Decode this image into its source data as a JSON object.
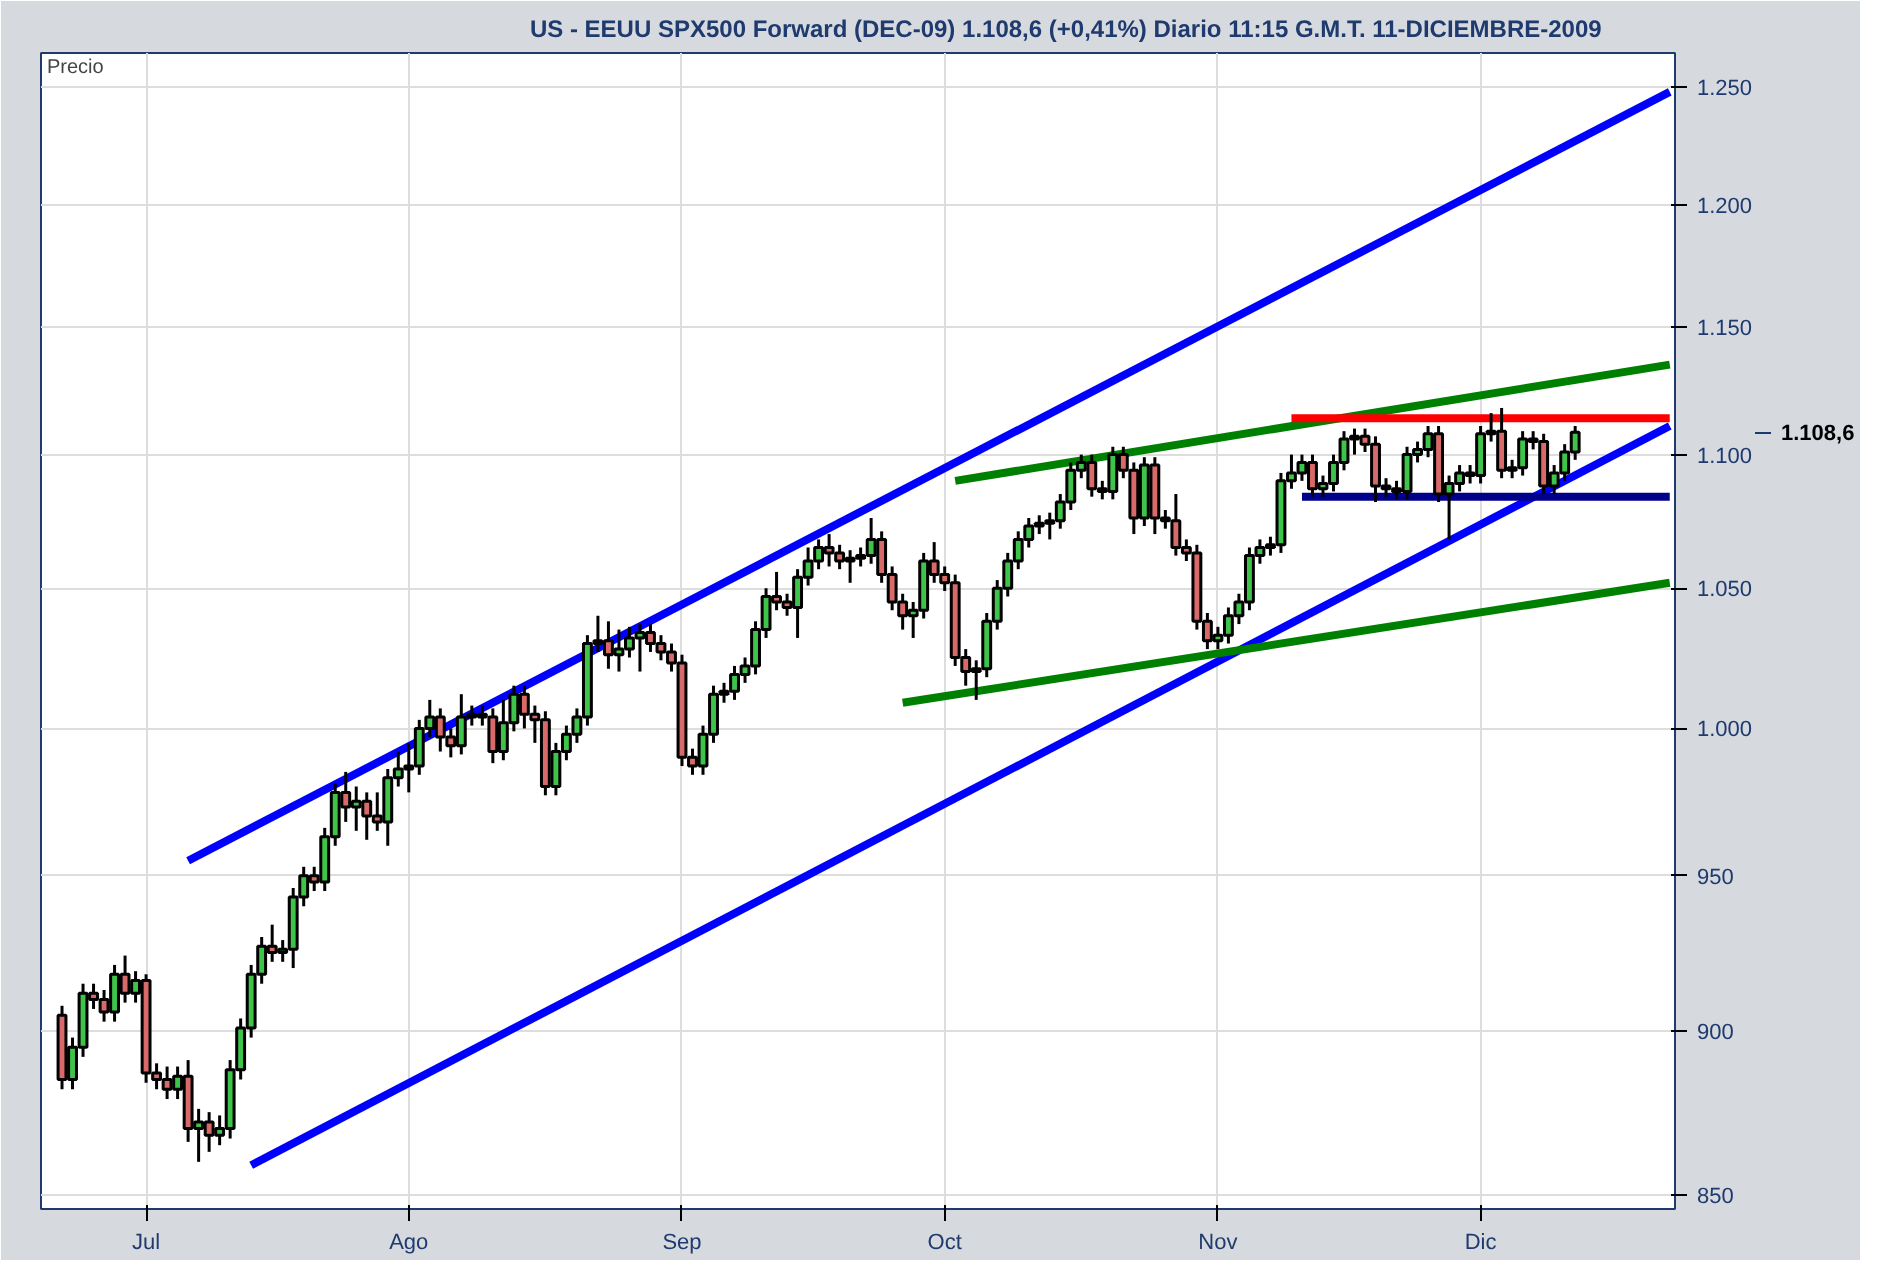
{
  "chart_data": {
    "type": "candlestick",
    "title": "US - EEUU SPX500 Forward (DEC-09)    1.108,6 (+0,41%)    Diario  11:15  G.M.T.    11-DICIEMBRE-2009",
    "ylabel": "Precio",
    "categories": [
      null,
      null,
      null,
      null,
      null,
      null,
      null,
      null,
      "Jul",
      null,
      null,
      null,
      null,
      null,
      null,
      null,
      null,
      null,
      null,
      null,
      null,
      null,
      null,
      null,
      null,
      null,
      null,
      null,
      null,
      null,
      null,
      null,
      null,
      "Ago",
      null,
      null,
      null,
      null,
      null,
      null,
      null,
      null,
      null,
      null,
      null,
      null,
      null,
      null,
      null,
      null,
      null,
      null,
      null,
      null,
      null,
      null,
      null,
      null,
      null,
      "Sep",
      null,
      null,
      null,
      null,
      null,
      null,
      null,
      null,
      null,
      null,
      null,
      null,
      null,
      null,
      null,
      null,
      null,
      null,
      null,
      null,
      null,
      null,
      null,
      null,
      "Oct",
      null,
      null,
      null,
      null,
      null,
      null,
      null,
      null,
      null,
      null,
      null,
      null,
      null,
      null,
      null,
      null,
      null,
      null,
      null,
      null,
      null,
      null,
      null,
      null,
      null,
      "Nov",
      null,
      null,
      null,
      null,
      null,
      null,
      null,
      null,
      null,
      null,
      null,
      null,
      null,
      null,
      null,
      null,
      null,
      null,
      null,
      null,
      null,
      null,
      null,
      null,
      "Dic",
      null,
      null,
      null,
      null,
      null,
      null,
      null,
      null,
      null,
      null,
      null,
      null,
      null,
      null,
      null,
      null,
      null,
      null
    ],
    "ohlc": [
      [
        905,
        908,
        882,
        885
      ],
      [
        885,
        898,
        882,
        895
      ],
      [
        895,
        915,
        892,
        912
      ],
      [
        912,
        915,
        907,
        910
      ],
      [
        910,
        913,
        903,
        906
      ],
      [
        906,
        921,
        903,
        918
      ],
      [
        918,
        924,
        909,
        912
      ],
      [
        912,
        919,
        909,
        916
      ],
      [
        916,
        918,
        884,
        887
      ],
      [
        887,
        890,
        882,
        885
      ],
      [
        885,
        889,
        879,
        882
      ],
      [
        882,
        889,
        879,
        886
      ],
      [
        886,
        891,
        866,
        870
      ],
      [
        870,
        876,
        860,
        872
      ],
      [
        872,
        875,
        863,
        868
      ],
      [
        868,
        874,
        865,
        870
      ],
      [
        870,
        891,
        867,
        888
      ],
      [
        888,
        904,
        885,
        901
      ],
      [
        901,
        921,
        898,
        918
      ],
      [
        918,
        930,
        915,
        927
      ],
      [
        927,
        934,
        922,
        925
      ],
      [
        925,
        929,
        922,
        926
      ],
      [
        926,
        946,
        920,
        943
      ],
      [
        943,
        953,
        940,
        950
      ],
      [
        950,
        953,
        945,
        948
      ],
      [
        948,
        966,
        945,
        963
      ],
      [
        963,
        981,
        960,
        978
      ],
      [
        978,
        985,
        968,
        973
      ],
      [
        973,
        980,
        965,
        975
      ],
      [
        975,
        978,
        962,
        970
      ],
      [
        970,
        978,
        965,
        968
      ],
      [
        968,
        986,
        960,
        983
      ],
      [
        983,
        992,
        980,
        986
      ],
      [
        986,
        995,
        978,
        987
      ],
      [
        987,
        1003,
        984,
        1000
      ],
      [
        1000,
        1010,
        997,
        1004
      ],
      [
        1004,
        1007,
        992,
        997
      ],
      [
        997,
        1000,
        990,
        994
      ],
      [
        994,
        1012,
        991,
        1004
      ],
      [
        1004,
        1008,
        1001,
        1005
      ],
      [
        1005,
        1008,
        1001,
        1004
      ],
      [
        1004,
        1007,
        988,
        992
      ],
      [
        992,
        1010,
        989,
        1002
      ],
      [
        1002,
        1015,
        999,
        1012
      ],
      [
        1012,
        1015,
        1000,
        1005
      ],
      [
        1005,
        1008,
        995,
        1003
      ],
      [
        1003,
        1006,
        977,
        980
      ],
      [
        980,
        995,
        977,
        992
      ],
      [
        992,
        1001,
        989,
        998
      ],
      [
        998,
        1007,
        995,
        1004
      ],
      [
        1004,
        1033,
        1001,
        1030
      ],
      [
        1030,
        1040,
        1027,
        1031
      ],
      [
        1031,
        1038,
        1021,
        1026
      ],
      [
        1026,
        1035,
        1020,
        1028
      ],
      [
        1028,
        1036,
        1025,
        1032
      ],
      [
        1032,
        1037,
        1020,
        1034
      ],
      [
        1034,
        1037,
        1027,
        1030
      ],
      [
        1030,
        1033,
        1024,
        1027
      ],
      [
        1027,
        1030,
        1020,
        1023
      ],
      [
        1023,
        1026,
        987,
        990
      ],
      [
        990,
        993,
        984,
        987
      ],
      [
        987,
        1001,
        984,
        998
      ],
      [
        998,
        1015,
        995,
        1012
      ],
      [
        1012,
        1016,
        1009,
        1013
      ],
      [
        1013,
        1022,
        1010,
        1019
      ],
      [
        1019,
        1025,
        1016,
        1022
      ],
      [
        1022,
        1038,
        1019,
        1035
      ],
      [
        1035,
        1050,
        1032,
        1047
      ],
      [
        1047,
        1056,
        1042,
        1045
      ],
      [
        1045,
        1048,
        1040,
        1043
      ],
      [
        1043,
        1057,
        1032,
        1054
      ],
      [
        1054,
        1065,
        1051,
        1060
      ],
      [
        1060,
        1068,
        1057,
        1065
      ],
      [
        1065,
        1070,
        1058,
        1063
      ],
      [
        1063,
        1066,
        1057,
        1060
      ],
      [
        1060,
        1064,
        1052,
        1061
      ],
      [
        1061,
        1065,
        1058,
        1062
      ],
      [
        1062,
        1076,
        1059,
        1068
      ],
      [
        1068,
        1071,
        1052,
        1055
      ],
      [
        1055,
        1058,
        1042,
        1045
      ],
      [
        1045,
        1048,
        1035,
        1040
      ],
      [
        1040,
        1045,
        1032,
        1042
      ],
      [
        1042,
        1063,
        1039,
        1060
      ],
      [
        1060,
        1067,
        1052,
        1055
      ],
      [
        1055,
        1058,
        1049,
        1052
      ],
      [
        1052,
        1055,
        1022,
        1025
      ],
      [
        1025,
        1028,
        1015,
        1020
      ],
      [
        1020,
        1024,
        1010,
        1021
      ],
      [
        1021,
        1041,
        1018,
        1038
      ],
      [
        1038,
        1053,
        1035,
        1050
      ],
      [
        1050,
        1063,
        1047,
        1060
      ],
      [
        1060,
        1071,
        1057,
        1068
      ],
      [
        1068,
        1076,
        1065,
        1073
      ],
      [
        1073,
        1077,
        1070,
        1074
      ],
      [
        1074,
        1078,
        1068,
        1075
      ],
      [
        1075,
        1085,
        1072,
        1082
      ],
      [
        1082,
        1097,
        1079,
        1094
      ],
      [
        1094,
        1100,
        1091,
        1097
      ],
      [
        1097,
        1100,
        1084,
        1087
      ],
      [
        1087,
        1090,
        1083,
        1086
      ],
      [
        1086,
        1103,
        1083,
        1100
      ],
      [
        1100,
        1103,
        1091,
        1094
      ],
      [
        1094,
        1097,
        1070,
        1076
      ],
      [
        1076,
        1099,
        1073,
        1096
      ],
      [
        1096,
        1099,
        1070,
        1076
      ],
      [
        1076,
        1079,
        1072,
        1075
      ],
      [
        1075,
        1085,
        1062,
        1065
      ],
      [
        1065,
        1068,
        1060,
        1063
      ],
      [
        1063,
        1066,
        1035,
        1038
      ],
      [
        1038,
        1041,
        1028,
        1031
      ],
      [
        1031,
        1036,
        1028,
        1033
      ],
      [
        1033,
        1043,
        1030,
        1040
      ],
      [
        1040,
        1048,
        1037,
        1045
      ],
      [
        1045,
        1065,
        1042,
        1062
      ],
      [
        1062,
        1068,
        1059,
        1065
      ],
      [
        1065,
        1069,
        1062,
        1066
      ],
      [
        1066,
        1093,
        1063,
        1090
      ],
      [
        1090,
        1100,
        1087,
        1093
      ],
      [
        1093,
        1100,
        1090,
        1097
      ],
      [
        1097,
        1100,
        1084,
        1087
      ],
      [
        1087,
        1092,
        1084,
        1089
      ],
      [
        1089,
        1100,
        1086,
        1097
      ],
      [
        1097,
        1109,
        1094,
        1106
      ],
      [
        1106,
        1110,
        1100,
        1107
      ],
      [
        1107,
        1110,
        1101,
        1104
      ],
      [
        1104,
        1107,
        1082,
        1088
      ],
      [
        1088,
        1091,
        1084,
        1087
      ],
      [
        1087,
        1090,
        1083,
        1086
      ],
      [
        1086,
        1103,
        1083,
        1100
      ],
      [
        1100,
        1105,
        1097,
        1102
      ],
      [
        1102,
        1111,
        1099,
        1108
      ],
      [
        1108,
        1111,
        1082,
        1085
      ],
      [
        1085,
        1092,
        1068,
        1089
      ],
      [
        1089,
        1096,
        1086,
        1093
      ],
      [
        1093,
        1096,
        1089,
        1092
      ],
      [
        1092,
        1111,
        1089,
        1108
      ],
      [
        1108,
        1116,
        1105,
        1109
      ],
      [
        1109,
        1118,
        1091,
        1094
      ],
      [
        1094,
        1098,
        1091,
        1095
      ],
      [
        1095,
        1109,
        1092,
        1106
      ],
      [
        1106,
        1109,
        1102,
        1105
      ],
      [
        1105,
        1108,
        1085,
        1088
      ],
      [
        1088,
        1096,
        1085,
        1093
      ],
      [
        1093,
        1104,
        1090,
        1101
      ],
      [
        1101,
        1111,
        1098,
        1108.6
      ],
      null,
      null,
      null,
      null,
      null,
      null,
      null,
      null,
      null
    ],
    "series": [
      {
        "type": "line",
        "color": "#0000ff",
        "values": [
          null,
          null,
          null,
          null,
          null,
          null,
          null,
          null,
          null,
          null,
          null,
          null,
          955,
          null,
          null,
          null,
          null,
          null,
          null,
          null,
          null,
          null,
          null,
          null,
          null,
          null,
          null,
          null,
          null,
          null,
          null,
          null,
          null,
          null,
          null,
          null,
          null,
          null,
          null,
          null,
          null,
          null,
          null,
          null,
          null,
          null,
          null,
          null,
          null,
          null,
          null,
          null,
          null,
          null,
          null,
          null,
          null,
          null,
          null,
          null,
          null,
          null,
          null,
          null,
          null,
          null,
          null,
          null,
          null,
          null,
          null,
          null,
          null,
          null,
          null,
          null,
          null,
          null,
          null,
          null,
          null,
          null,
          null,
          null,
          null,
          null,
          null,
          null,
          null,
          null,
          null,
          null,
          null,
          null,
          null,
          null,
          null,
          null,
          null,
          null,
          null,
          null,
          null,
          null,
          null,
          null,
          null,
          null,
          null,
          null,
          null,
          null,
          null,
          null,
          null,
          null,
          null,
          null,
          null,
          null,
          null,
          null,
          null,
          null,
          null,
          null,
          null,
          null,
          null,
          null,
          null,
          null,
          null,
          null,
          null,
          null,
          null,
          null,
          null,
          null,
          null,
          null,
          null,
          null,
          null,
          null,
          null,
          null,
          null,
          null,
          null,
          null,
          null,
          1248
        ]
      },
      {
        "type": "line",
        "color": "#0000ff",
        "values": [
          null,
          null,
          null,
          null,
          null,
          null,
          null,
          null,
          null,
          null,
          null,
          null,
          null,
          null,
          null,
          null,
          null,
          null,
          859,
          null,
          null,
          null,
          null,
          null,
          null,
          null,
          null,
          null,
          null,
          null,
          null,
          null,
          null,
          null,
          null,
          null,
          null,
          null,
          null,
          null,
          null,
          null,
          null,
          null,
          null,
          null,
          null,
          null,
          null,
          null,
          null,
          null,
          null,
          null,
          null,
          null,
          null,
          null,
          null,
          null,
          null,
          null,
          null,
          null,
          null,
          null,
          null,
          null,
          null,
          null,
          null,
          null,
          null,
          null,
          null,
          null,
          null,
          null,
          null,
          null,
          null,
          null,
          null,
          null,
          null,
          null,
          null,
          null,
          null,
          null,
          null,
          null,
          null,
          null,
          null,
          null,
          null,
          null,
          null,
          null,
          null,
          null,
          null,
          null,
          null,
          null,
          null,
          null,
          null,
          null,
          null,
          null,
          null,
          null,
          null,
          null,
          null,
          null,
          null,
          null,
          null,
          null,
          null,
          null,
          null,
          null,
          null,
          null,
          null,
          null,
          null,
          null,
          null,
          null,
          null,
          null,
          null,
          null,
          null,
          null,
          null,
          null,
          null,
          null,
          null,
          null,
          null,
          null,
          null,
          null,
          null,
          null,
          null,
          1111
        ]
      },
      {
        "type": "line",
        "color": "#008000",
        "values": [
          null,
          null,
          null,
          null,
          null,
          null,
          null,
          null,
          null,
          null,
          null,
          null,
          null,
          null,
          null,
          null,
          null,
          null,
          null,
          null,
          null,
          null,
          null,
          null,
          null,
          null,
          null,
          null,
          null,
          null,
          null,
          null,
          null,
          null,
          null,
          null,
          null,
          null,
          null,
          null,
          null,
          null,
          null,
          null,
          null,
          null,
          null,
          null,
          null,
          null,
          null,
          null,
          null,
          null,
          null,
          null,
          null,
          null,
          null,
          null,
          null,
          null,
          null,
          null,
          null,
          null,
          null,
          null,
          null,
          null,
          null,
          null,
          null,
          null,
          null,
          null,
          null,
          null,
          null,
          null,
          null,
          null,
          null,
          null,
          null,
          1090,
          null,
          null,
          null,
          null,
          null,
          null,
          null,
          null,
          null,
          null,
          null,
          null,
          null,
          null,
          null,
          null,
          null,
          null,
          null,
          null,
          null,
          null,
          null,
          null,
          null,
          null,
          null,
          null,
          null,
          null,
          null,
          null,
          null,
          null,
          null,
          null,
          null,
          null,
          null,
          null,
          null,
          null,
          null,
          null,
          null,
          null,
          null,
          null,
          null,
          null,
          null,
          null,
          null,
          null,
          null,
          null,
          null,
          null,
          null,
          null,
          null,
          null,
          null,
          null,
          null,
          null,
          null,
          1135
        ]
      },
      {
        "type": "line",
        "color": "#008000",
        "values": [
          null,
          null,
          null,
          null,
          null,
          null,
          null,
          null,
          null,
          null,
          null,
          null,
          null,
          null,
          null,
          null,
          null,
          null,
          null,
          null,
          null,
          null,
          null,
          null,
          null,
          null,
          null,
          null,
          null,
          null,
          null,
          null,
          null,
          null,
          null,
          null,
          null,
          null,
          null,
          null,
          null,
          null,
          null,
          null,
          null,
          null,
          null,
          null,
          null,
          null,
          null,
          null,
          null,
          null,
          null,
          null,
          null,
          null,
          null,
          null,
          null,
          null,
          null,
          null,
          null,
          null,
          null,
          null,
          null,
          null,
          null,
          null,
          null,
          null,
          null,
          null,
          null,
          null,
          null,
          null,
          1009,
          null,
          null,
          null,
          null,
          null,
          null,
          null,
          null,
          null,
          null,
          null,
          null,
          null,
          null,
          null,
          null,
          null,
          null,
          null,
          null,
          null,
          null,
          null,
          null,
          null,
          null,
          null,
          null,
          null,
          null,
          null,
          null,
          null,
          null,
          null,
          null,
          null,
          null,
          null,
          null,
          null,
          null,
          null,
          null,
          null,
          null,
          null,
          null,
          null,
          null,
          null,
          null,
          null,
          null,
          null,
          null,
          null,
          null,
          null,
          null,
          null,
          null,
          null,
          null,
          null,
          null,
          null,
          null,
          null,
          null,
          null,
          null,
          1052
        ]
      },
      {
        "type": "line",
        "color": "#ff0000",
        "values": [
          null,
          null,
          null,
          null,
          null,
          null,
          null,
          null,
          null,
          null,
          null,
          null,
          null,
          null,
          null,
          null,
          null,
          null,
          null,
          null,
          null,
          null,
          null,
          null,
          null,
          null,
          null,
          null,
          null,
          null,
          null,
          null,
          null,
          null,
          null,
          null,
          null,
          null,
          null,
          null,
          null,
          null,
          null,
          null,
          null,
          null,
          null,
          null,
          null,
          null,
          null,
          null,
          null,
          null,
          null,
          null,
          null,
          null,
          null,
          null,
          null,
          null,
          null,
          null,
          null,
          null,
          null,
          null,
          null,
          null,
          null,
          null,
          null,
          null,
          null,
          null,
          null,
          null,
          null,
          null,
          null,
          null,
          null,
          null,
          null,
          null,
          null,
          null,
          null,
          null,
          null,
          null,
          null,
          null,
          null,
          null,
          null,
          null,
          null,
          null,
          null,
          null,
          null,
          null,
          null,
          null,
          null,
          null,
          null,
          null,
          null,
          null,
          null,
          null,
          null,
          null,
          null,
          1114,
          null,
          null,
          null,
          null,
          null,
          null,
          null,
          null,
          null,
          null,
          null,
          null,
          null,
          null,
          null,
          null,
          null,
          null,
          null,
          null,
          null,
          null,
          null,
          null,
          null,
          null,
          null,
          null,
          null,
          null,
          null,
          null,
          null,
          null,
          null,
          1114
        ]
      },
      {
        "type": "line",
        "color": "#00008b",
        "values": [
          null,
          null,
          null,
          null,
          null,
          null,
          null,
          null,
          null,
          null,
          null,
          null,
          null,
          null,
          null,
          null,
          null,
          null,
          null,
          null,
          null,
          null,
          null,
          null,
          null,
          null,
          null,
          null,
          null,
          null,
          null,
          null,
          null,
          null,
          null,
          null,
          null,
          null,
          null,
          null,
          null,
          null,
          null,
          null,
          null,
          null,
          null,
          null,
          null,
          null,
          null,
          null,
          null,
          null,
          null,
          null,
          null,
          null,
          null,
          null,
          null,
          null,
          null,
          null,
          null,
          null,
          null,
          null,
          null,
          null,
          null,
          null,
          null,
          null,
          null,
          null,
          null,
          null,
          null,
          null,
          null,
          null,
          null,
          null,
          null,
          null,
          null,
          null,
          null,
          null,
          null,
          null,
          null,
          null,
          null,
          null,
          null,
          null,
          null,
          null,
          null,
          null,
          null,
          null,
          null,
          null,
          null,
          null,
          null,
          null,
          null,
          null,
          null,
          null,
          null,
          null,
          null,
          null,
          1084,
          null,
          null,
          null,
          null,
          null,
          null,
          null,
          null,
          null,
          null,
          null,
          null,
          null,
          null,
          null,
          null,
          null,
          null,
          null,
          null,
          null,
          null,
          null,
          null,
          null,
          null,
          null,
          null,
          null,
          null,
          null,
          null,
          null,
          null,
          1084
        ]
      }
    ],
    "ylim": [
      846,
      1265
    ],
    "log": true,
    "yticks": [
      850,
      900,
      950,
      {
        "value": 1000,
        "label": "1.000"
      },
      {
        "value": 1050,
        "label": "1.050"
      },
      {
        "value": 1100,
        "label": "1.100"
      },
      {
        "value": 1150,
        "label": "1.150"
      },
      {
        "value": 1200,
        "label": "1.200"
      },
      {
        "value": 1250,
        "label": "1.250"
      }
    ],
    "grid": true,
    "annotations": [
      "1.108,6"
    ]
  }
}
